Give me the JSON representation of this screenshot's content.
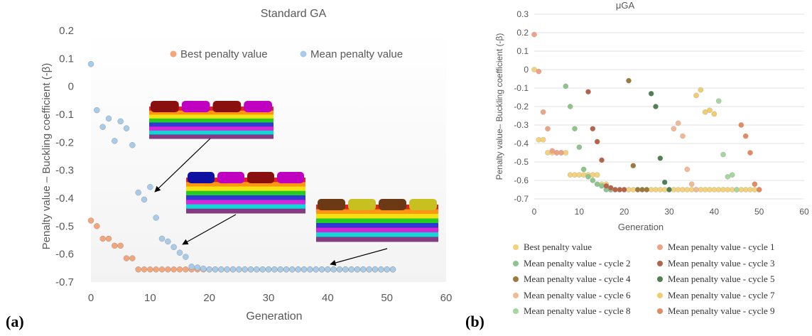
{
  "panels": {
    "a_label": "(a)",
    "b_label": "(b)"
  },
  "colors": {
    "best": "#F4A67A",
    "mean": "#A8CBEA",
    "axis_text": "#595959",
    "grid": "#D9D9D9"
  },
  "chart_data": [
    {
      "type": "scatter",
      "title": "Standard GA",
      "xlabel": "Generation",
      "ylabel": "Penalty value – Buckling coefficient (-β)",
      "xlim": [
        0,
        60
      ],
      "ylim": [
        -0.7,
        0.2
      ],
      "xticks": [
        "0",
        "10",
        "20",
        "30",
        "40",
        "50",
        "60"
      ],
      "yticks": [
        "0.2",
        "0.1",
        "0",
        "-0.1",
        "-0.2",
        "-0.3",
        "-0.4",
        "-0.5",
        "-0.6",
        "-0.7"
      ],
      "grid": "none",
      "legend": "top-right",
      "series": [
        {
          "name": "Best penalty value",
          "color": "#F4A67A",
          "x": [
            0,
            1,
            2,
            3,
            4,
            5,
            6,
            7,
            8,
            9,
            10,
            11,
            12,
            13,
            14,
            15,
            16,
            17,
            18,
            19,
            20,
            21,
            22,
            23,
            24,
            25,
            26,
            27,
            28,
            29,
            30,
            31,
            32,
            33,
            34,
            35,
            36,
            37,
            38,
            39,
            40,
            41,
            42,
            43,
            44,
            45,
            46,
            47,
            48,
            49,
            50,
            51
          ],
          "y": [
            -0.48,
            -0.5,
            -0.545,
            -0.545,
            -0.57,
            -0.57,
            -0.615,
            -0.615,
            -0.655,
            -0.655,
            -0.655,
            -0.655,
            -0.655,
            -0.655,
            -0.655,
            -0.655,
            -0.655,
            -0.655,
            -0.655,
            -0.655,
            -0.655,
            -0.655,
            -0.655,
            -0.655,
            -0.655,
            -0.655,
            -0.655,
            -0.655,
            -0.655,
            -0.655,
            -0.655,
            -0.655,
            -0.655,
            -0.655,
            -0.655,
            -0.655,
            -0.655,
            -0.655,
            -0.655,
            -0.655,
            -0.655,
            -0.655,
            -0.655,
            -0.655,
            -0.655,
            -0.655,
            -0.655,
            -0.655,
            -0.655,
            -0.655,
            -0.655,
            -0.655
          ]
        },
        {
          "name": "Mean penalty value",
          "color": "#A8CBEA",
          "x": [
            0,
            1,
            2,
            3,
            4,
            5,
            6,
            7,
            8,
            9,
            10,
            11,
            12,
            13,
            14,
            15,
            16,
            17,
            18,
            19,
            20,
            21,
            22,
            23,
            24,
            25,
            26,
            27,
            28,
            29,
            30,
            31,
            32,
            33,
            34,
            35,
            36,
            37,
            38,
            39,
            40,
            41,
            42,
            43,
            44,
            45,
            46,
            47,
            48,
            49,
            50,
            51
          ],
          "y": [
            0.08,
            -0.085,
            -0.145,
            -0.115,
            -0.195,
            -0.125,
            -0.15,
            -0.21,
            -0.38,
            -0.405,
            -0.36,
            -0.47,
            -0.545,
            -0.555,
            -0.575,
            -0.595,
            -0.61,
            -0.645,
            -0.648,
            -0.652,
            -0.655,
            -0.655,
            -0.655,
            -0.655,
            -0.655,
            -0.655,
            -0.655,
            -0.655,
            -0.655,
            -0.655,
            -0.655,
            -0.655,
            -0.655,
            -0.655,
            -0.655,
            -0.655,
            -0.655,
            -0.655,
            -0.655,
            -0.655,
            -0.655,
            -0.655,
            -0.655,
            -0.655,
            -0.655,
            -0.655,
            -0.655,
            -0.655,
            -0.655,
            -0.655,
            -0.655,
            -0.655
          ]
        }
      ]
    },
    {
      "type": "scatter",
      "title": "μGA",
      "xlabel": "Generation",
      "ylabel": "Penalty value– Buckling coefficient (-β)",
      "xlim": [
        0,
        60
      ],
      "ylim": [
        -0.7,
        0.3
      ],
      "xticks": [
        "0",
        "10",
        "20",
        "30",
        "40",
        "50",
        "60"
      ],
      "yticks": [
        "0.3",
        "0.2",
        "0.1",
        "0",
        "-0.1",
        "-0.2",
        "-0.3",
        "-0.4",
        "-0.5",
        "-0.6",
        "-0.7"
      ],
      "grid": "horizontal",
      "legend": "bottom",
      "series": [
        {
          "name": "Best penalty value",
          "color": "#F2D27A",
          "x": [
            0,
            1,
            2,
            3,
            4,
            5,
            6,
            7,
            8,
            9,
            10,
            11,
            12,
            13,
            14,
            15,
            16,
            17,
            18,
            19,
            20,
            21,
            22,
            23,
            24,
            25,
            26,
            27,
            28,
            29,
            30,
            31,
            32,
            33,
            34,
            35,
            36,
            37,
            38,
            39,
            40,
            41,
            42,
            43,
            44,
            45,
            46,
            47,
            48,
            49,
            50
          ],
          "y": [
            0,
            -0.38,
            -0.38,
            -0.45,
            -0.45,
            -0.45,
            -0.45,
            -0.45,
            -0.57,
            -0.57,
            -0.57,
            -0.57,
            -0.57,
            -0.57,
            -0.57,
            -0.62,
            -0.62,
            -0.65,
            -0.65,
            -0.65,
            -0.65,
            -0.65,
            -0.65,
            -0.65,
            -0.65,
            -0.65,
            -0.65,
            -0.65,
            -0.65,
            -0.65,
            -0.65,
            -0.65,
            -0.65,
            -0.65,
            -0.65,
            -0.65,
            -0.65,
            -0.65,
            -0.65,
            -0.65,
            -0.65,
            -0.65,
            -0.65,
            -0.65,
            -0.65,
            -0.65,
            -0.65,
            -0.65,
            -0.65,
            -0.65,
            -0.65
          ]
        },
        {
          "name": "Mean penalty value - cycle 1",
          "color": "#F0A384",
          "x": [
            0,
            1,
            2,
            3,
            4,
            5,
            6
          ],
          "y": [
            0.19,
            -0.01,
            -0.23,
            -0.32,
            -0.44,
            -0.45,
            -0.45
          ]
        },
        {
          "name": "Mean penalty value - cycle 2",
          "color": "#8CC48C",
          "x": [
            7,
            8,
            9,
            10,
            11,
            12,
            13,
            14,
            15,
            16,
            17
          ],
          "y": [
            -0.09,
            -0.2,
            -0.32,
            -0.42,
            -0.54,
            -0.58,
            -0.6,
            -0.62,
            -0.63,
            -0.65,
            -0.65
          ]
        },
        {
          "name": "Mean penalty value - cycle 3",
          "color": "#B5644A",
          "x": [
            12,
            13,
            14,
            15,
            16,
            17,
            18,
            19,
            20
          ],
          "y": [
            -0.12,
            -0.32,
            -0.39,
            -0.49,
            -0.63,
            -0.64,
            -0.65,
            -0.65,
            -0.65
          ]
        },
        {
          "name": "Mean penalty value - cycle 4",
          "color": "#9C7A3C",
          "x": [
            21,
            22,
            23,
            24,
            25
          ],
          "y": [
            -0.06,
            -0.52,
            -0.65,
            -0.65,
            -0.65
          ]
        },
        {
          "name": "Mean penalty value - cycle 5",
          "color": "#4F7F52",
          "x": [
            26,
            27,
            28,
            29,
            30
          ],
          "y": [
            -0.13,
            -0.2,
            -0.48,
            -0.61,
            -0.65
          ]
        },
        {
          "name": "Mean penalty value - cycle 6",
          "color": "#F3B994",
          "x": [
            31,
            32,
            33,
            34,
            35,
            36
          ],
          "y": [
            -0.32,
            -0.29,
            -0.36,
            -0.54,
            -0.62,
            -0.65
          ]
        },
        {
          "name": "Mean penalty value - cycle 7",
          "color": "#F2CC6E",
          "x": [
            36,
            37,
            38,
            39,
            40
          ],
          "y": [
            -0.14,
            -0.11,
            -0.23,
            -0.22,
            -0.24
          ]
        },
        {
          "name": "Mean penalty value - cycle 8",
          "color": "#A6D6A0",
          "x": [
            41,
            42,
            43,
            44,
            45
          ],
          "y": [
            -0.17,
            -0.46,
            -0.58,
            -0.57,
            -0.65
          ]
        },
        {
          "name": "Mean penalty value - cycle 9",
          "color": "#E58A60",
          "x": [
            46,
            47,
            48,
            49,
            50
          ],
          "y": [
            -0.3,
            -0.36,
            -0.45,
            -0.62,
            -0.65
          ]
        }
      ]
    }
  ]
}
